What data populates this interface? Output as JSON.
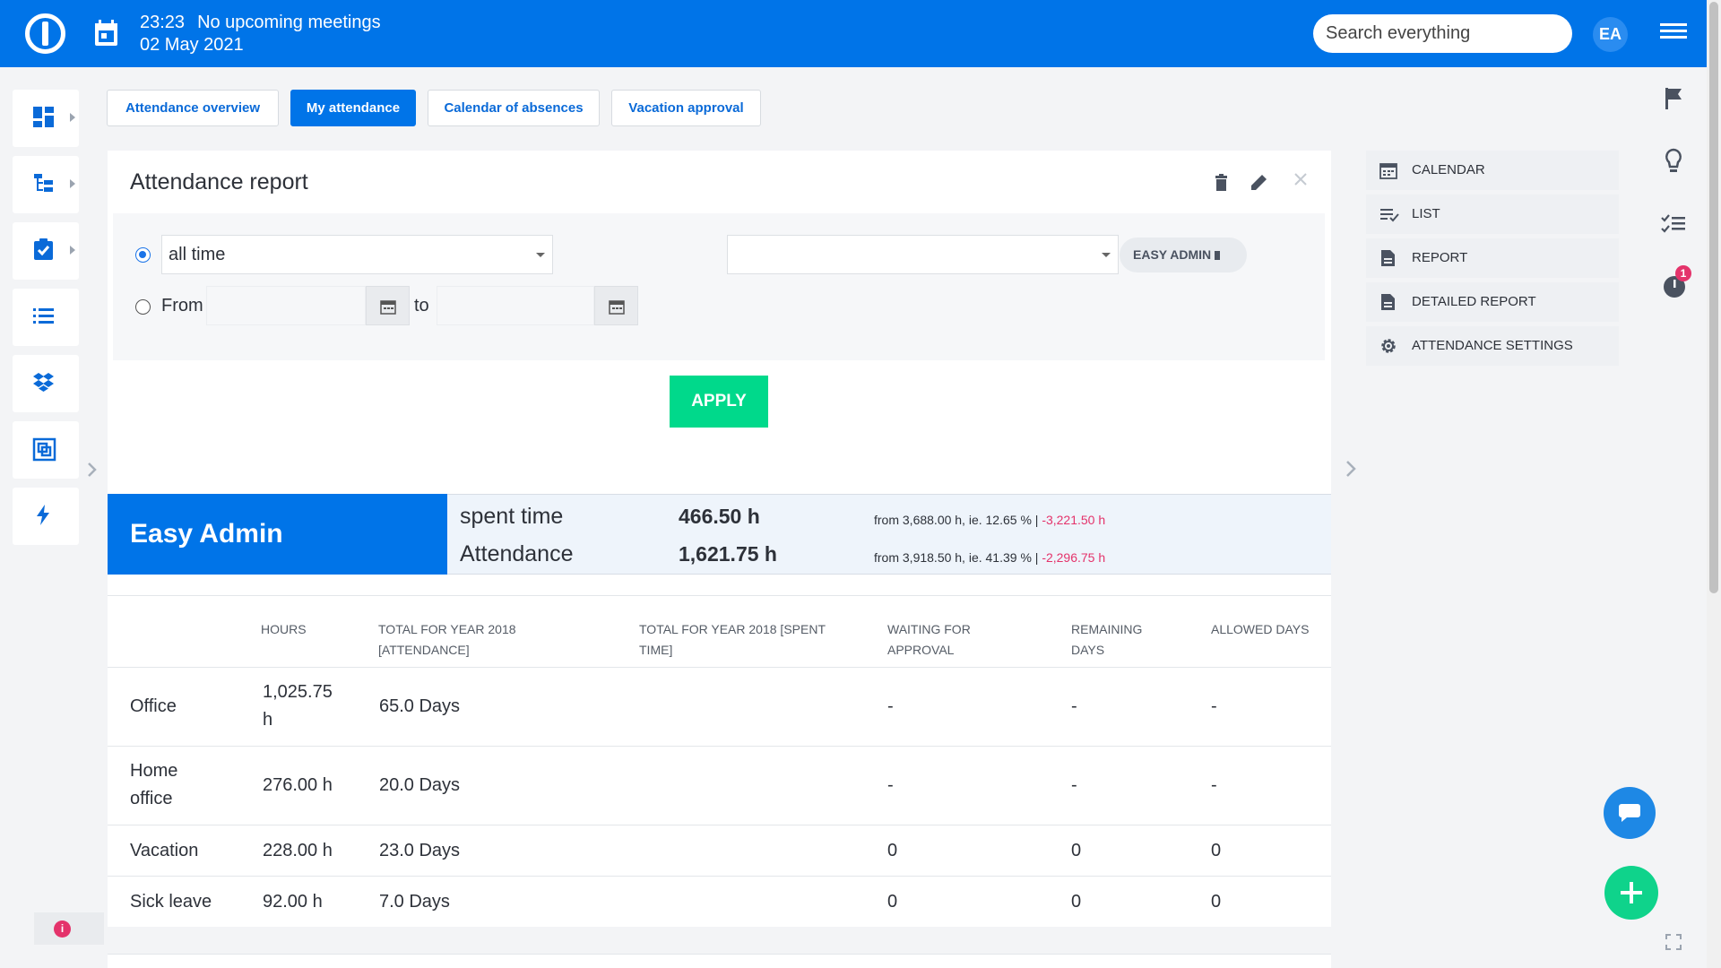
{
  "topbar": {
    "time": "23:23",
    "meetings": "No upcoming meetings",
    "date": "02 May 2021",
    "search_placeholder": "Search everything",
    "avatar_initials": "EA"
  },
  "tabs": [
    {
      "label": "Attendance overview",
      "active": false
    },
    {
      "label": "My attendance",
      "active": true
    },
    {
      "label": "Calendar of absences",
      "active": false
    },
    {
      "label": "Vacation approval",
      "active": false
    }
  ],
  "report": {
    "title": "Attendance report",
    "period_value": "all time",
    "from_label": "From",
    "to_label": "to",
    "user_chip": "EASY ADMIN",
    "apply_label": "APPLY"
  },
  "summary": {
    "name": "Easy Admin",
    "rows": [
      {
        "label": "spent time",
        "value": "466.50 h",
        "note": "from 3,688.00 h, ie. 12.65 % | ",
        "diff": "-3,221.50 h"
      },
      {
        "label": "Attendance",
        "value": "1,621.75 h",
        "note": "from 3,918.50 h, ie. 41.39 % | ",
        "diff": "-2,296.75 h"
      }
    ]
  },
  "table": {
    "headers": [
      "HOURS",
      "TOTAL FOR YEAR 2018 [ATTENDANCE]",
      "TOTAL FOR YEAR 2018 [SPENT TIME]",
      "WAITING FOR APPROVAL",
      "REMAINING DAYS",
      "ALLOWED DAYS"
    ],
    "rows": [
      {
        "type": "Office",
        "hours": "1,025.75 h",
        "attendance": "65.0 Days",
        "spent": "",
        "waiting": "-",
        "remaining": "-",
        "allowed": "-"
      },
      {
        "type": "Home office",
        "hours": "276.00 h",
        "attendance": "20.0 Days",
        "spent": "",
        "waiting": "-",
        "remaining": "-",
        "allowed": "-"
      },
      {
        "type": "Vacation",
        "hours": "228.00 h",
        "attendance": "23.0 Days",
        "spent": "",
        "waiting": "0",
        "remaining": "0",
        "allowed": "0"
      },
      {
        "type": "Sick leave",
        "hours": "92.00 h",
        "attendance": "7.0 Days",
        "spent": "",
        "waiting": "0",
        "remaining": "0",
        "allowed": "0"
      }
    ]
  },
  "side_menu": [
    {
      "label": "CALENDAR",
      "icon": "calendar-icon"
    },
    {
      "label": "LIST",
      "icon": "list-check-icon"
    },
    {
      "label": "REPORT",
      "icon": "document-icon"
    },
    {
      "label": "DETAILED REPORT",
      "icon": "document-icon"
    },
    {
      "label": "ATTENDANCE SETTINGS",
      "icon": "gear-icon"
    }
  ],
  "timer_badge": "1",
  "colors": {
    "brand": "#0074e8",
    "apply": "#00d98b",
    "negative": "#e4336b"
  }
}
